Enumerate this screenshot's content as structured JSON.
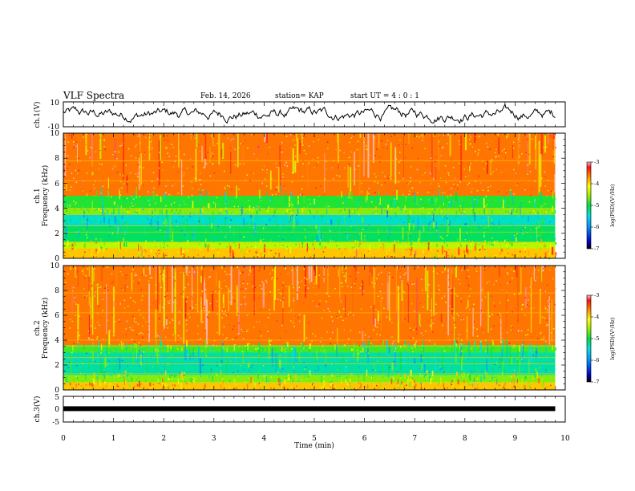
{
  "header": {
    "title": "VLF Spectra",
    "date": "Feb. 14, 2026",
    "station": "station= KAP",
    "start_ut": "start  UT  =   4 : 0  : 1"
  },
  "chart_data": [
    {
      "id": "ch1-waveform",
      "type": "line",
      "ylabel": "ch.1(V)",
      "ylim": [
        -10,
        10
      ],
      "ytick_labels": [
        "10",
        "-10"
      ],
      "xlim": [
        0,
        10
      ],
      "data_end_min": 9.8,
      "description_values": "noisy voltage trace oscillating roughly between -7 and 9 V"
    },
    {
      "id": "ch1-spectrogram",
      "type": "heatmap",
      "ylabel_line1": "ch.1",
      "ylabel_line2": "Frequency  (kHz)",
      "ylim": [
        0,
        10
      ],
      "ytick_labels": [
        "0",
        "2",
        "4",
        "6",
        "8",
        "10"
      ],
      "xlim": [
        0,
        10
      ],
      "data_end_min": 9.8,
      "bands_khz": [
        {
          "from": 0,
          "to": 0.8,
          "level": -3.9
        },
        {
          "from": 0.8,
          "to": 1.3,
          "level": -4.4
        },
        {
          "from": 1.3,
          "to": 2.6,
          "level": -5.1
        },
        {
          "from": 2.6,
          "to": 3.5,
          "level": -5.4
        },
        {
          "from": 3.5,
          "to": 4.0,
          "level": -4.6
        },
        {
          "from": 4.0,
          "to": 5.0,
          "level": -4.9
        },
        {
          "from": 5.0,
          "to": 10,
          "level": -3.6
        }
      ],
      "colorbar": {
        "min": -7,
        "max": -3,
        "tick_labels": [
          "-3",
          "-4",
          "-5",
          "-6",
          "-7"
        ],
        "label": "log(PSD)(V²/Hz)"
      }
    },
    {
      "id": "ch2-spectrogram",
      "type": "heatmap",
      "ylabel_line1": "ch.2",
      "ylabel_line2": "Frequency  (kHz)",
      "ylim": [
        0,
        10
      ],
      "ytick_labels": [
        "0",
        "2",
        "4",
        "6",
        "8",
        "10"
      ],
      "xlim": [
        0,
        10
      ],
      "data_end_min": 9.8,
      "bands_khz": [
        {
          "from": 0,
          "to": 0.6,
          "level": -3.9
        },
        {
          "from": 0.6,
          "to": 1.2,
          "level": -4.6
        },
        {
          "from": 1.2,
          "to": 3.0,
          "level": -5.3
        },
        {
          "from": 3.0,
          "to": 3.6,
          "level": -4.8
        },
        {
          "from": 3.6,
          "to": 10,
          "level": -3.6
        }
      ],
      "colorbar": {
        "min": -7,
        "max": -3,
        "tick_labels": [
          "-3",
          "-4",
          "-5",
          "-6",
          "-7"
        ],
        "label": "log(PSD)(V²/Hz)"
      }
    },
    {
      "id": "ch3-waveform",
      "type": "line",
      "ylabel": "ch.3(V)",
      "ylim": [
        -5,
        5
      ],
      "ytick_labels": [
        "5",
        "0",
        "-5"
      ],
      "xlim": [
        0,
        10
      ],
      "data_end_min": 9.8,
      "level_v": 0.2,
      "xlabel": "Time  (min)",
      "xtick_labels": [
        "0",
        "1",
        "2",
        "3",
        "4",
        "5",
        "6",
        "7",
        "8",
        "9",
        "10"
      ]
    }
  ]
}
